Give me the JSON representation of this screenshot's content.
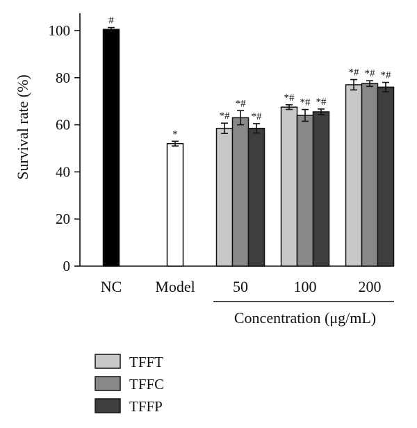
{
  "chart_data": {
    "type": "bar",
    "ylabel": "Survival rate (%)",
    "ylim": [
      0,
      105
    ],
    "yticks": [
      0,
      20,
      40,
      60,
      80,
      100
    ],
    "grid": false,
    "legend_placement": "bottom-left",
    "xaxis_group_title": "Concentration (μg/mL)",
    "controls": [
      {
        "label": "NC",
        "value": 100.5,
        "error": 0.8,
        "annotation": "#",
        "color": "#000000"
      },
      {
        "label": "Model",
        "value": 52.0,
        "error": 1.0,
        "annotation": "*",
        "color": "#ffffff"
      }
    ],
    "categories": [
      "50",
      "100",
      "200"
    ],
    "series": [
      {
        "name": "TFFT",
        "color": "#c8c8c8",
        "values": [
          58.5,
          67.5,
          77.0
        ],
        "errors": [
          2.2,
          1.0,
          2.2
        ],
        "annotations": [
          "*#",
          "*#",
          "*#"
        ]
      },
      {
        "name": "TFFC",
        "color": "#888888",
        "values": [
          63.0,
          64.0,
          77.5
        ],
        "errors": [
          3.0,
          2.5,
          1.2
        ],
        "annotations": [
          "*#",
          "*#",
          "*#"
        ]
      },
      {
        "name": "TFFP",
        "color": "#3e3e3e",
        "values": [
          58.5,
          65.5,
          76.0
        ],
        "errors": [
          2.0,
          1.2,
          2.0
        ],
        "annotations": [
          "*#",
          "*#",
          "*#"
        ]
      }
    ]
  }
}
